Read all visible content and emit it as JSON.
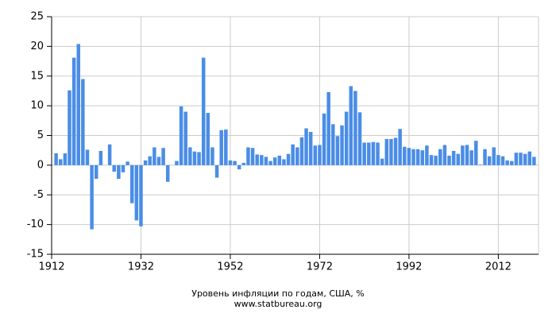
{
  "chart_data": {
    "type": "bar",
    "title": "Уровень инфляции по годам, США, %",
    "subtitle": "www.statbureau.org",
    "x": [
      1913,
      1914,
      1915,
      1916,
      1917,
      1918,
      1919,
      1920,
      1921,
      1922,
      1923,
      1924,
      1925,
      1926,
      1927,
      1928,
      1929,
      1930,
      1931,
      1932,
      1933,
      1934,
      1935,
      1936,
      1937,
      1938,
      1939,
      1940,
      1941,
      1942,
      1943,
      1944,
      1945,
      1946,
      1947,
      1948,
      1949,
      1950,
      1951,
      1952,
      1953,
      1954,
      1955,
      1956,
      1957,
      1958,
      1959,
      1960,
      1961,
      1962,
      1963,
      1964,
      1965,
      1966,
      1967,
      1968,
      1969,
      1970,
      1971,
      1972,
      1973,
      1974,
      1975,
      1976,
      1977,
      1978,
      1979,
      1980,
      1981,
      1982,
      1983,
      1984,
      1985,
      1986,
      1987,
      1988,
      1989,
      1990,
      1991,
      1992,
      1993,
      1994,
      1995,
      1996,
      1997,
      1998,
      1999,
      2000,
      2001,
      2002,
      2003,
      2004,
      2005,
      2006,
      2007,
      2008,
      2009,
      2010,
      2011,
      2012,
      2013,
      2014,
      2015,
      2016,
      2017,
      2018,
      2019,
      2020
    ],
    "values": [
      2.0,
      1.0,
      2.0,
      12.6,
      18.1,
      20.4,
      14.5,
      2.6,
      -10.8,
      -2.3,
      2.4,
      0,
      3.5,
      -1.1,
      -2.3,
      -1.2,
      0.6,
      -6.4,
      -9.3,
      -10.3,
      0.8,
      1.5,
      3.0,
      1.4,
      2.9,
      -2.8,
      0,
      0.7,
      9.9,
      9.0,
      3.0,
      2.3,
      2.2,
      18.1,
      8.8,
      3.0,
      -2.1,
      5.9,
      6.0,
      0.8,
      0.7,
      -0.7,
      0.4,
      3.0,
      2.9,
      1.8,
      1.7,
      1.4,
      0.7,
      1.3,
      1.6,
      1.0,
      1.9,
      3.5,
      3.0,
      4.7,
      6.2,
      5.6,
      3.3,
      3.4,
      8.7,
      12.3,
      6.9,
      4.9,
      6.7,
      9.0,
      13.3,
      12.5,
      8.9,
      3.8,
      3.8,
      3.9,
      3.8,
      1.1,
      4.4,
      4.4,
      4.6,
      6.1,
      3.1,
      2.9,
      2.7,
      2.7,
      2.5,
      3.3,
      1.7,
      1.6,
      2.7,
      3.4,
      1.6,
      2.4,
      1.9,
      3.3,
      3.4,
      2.5,
      4.1,
      0.1,
      2.7,
      1.5,
      3.0,
      1.7,
      1.5,
      0.8,
      0.7,
      2.1,
      2.1,
      1.9,
      2.3,
      1.4
    ],
    "color": "#4a8de6",
    "xlim": [
      1912,
      2021
    ],
    "xticks": [
      1912,
      1932,
      1952,
      1972,
      1992,
      2012
    ],
    "ylim": [
      -15,
      25
    ],
    "yticks": [
      -15,
      -10,
      -5,
      0,
      5,
      10,
      15,
      20,
      25
    ],
    "grid": true
  }
}
